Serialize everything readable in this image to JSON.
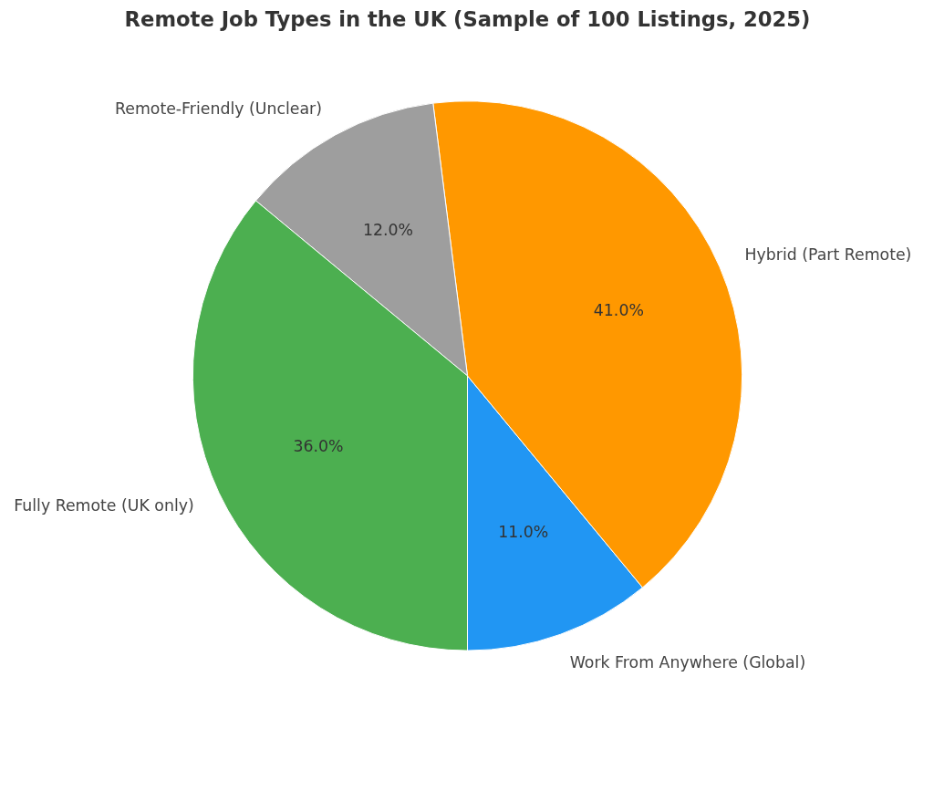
{
  "chart_data": {
    "type": "pie",
    "title": "Remote Job Types in the UK (Sample of 100 Listings, 2025)",
    "categories": [
      "Work From Anywhere (Global)",
      "Hybrid (Part Remote)",
      "Remote-Friendly (Unclear)",
      "Fully Remote (UK only)"
    ],
    "values": [
      11,
      41,
      12,
      36
    ],
    "colors": [
      "#2196f3",
      "#ff9800",
      "#9e9e9e",
      "#4caf50"
    ],
    "value_labels": [
      "11.0%",
      "41.0%",
      "12.0%",
      "36.0%"
    ]
  }
}
